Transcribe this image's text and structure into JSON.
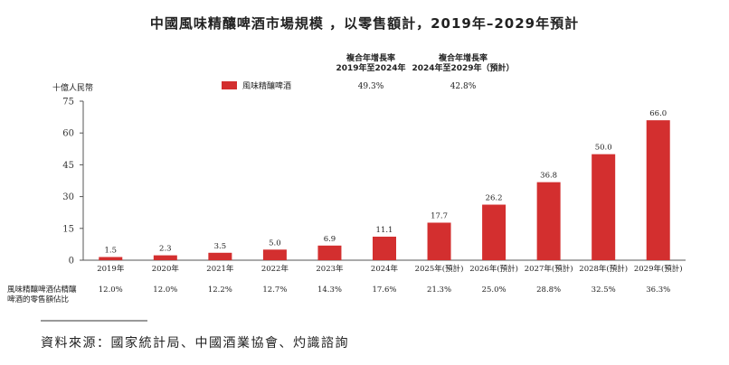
{
  "title": "中國風味精釀啤酒市場規模 ，以零售額計，2019年–2029年預計",
  "cagr": {
    "header_1_line1": "複合年增長率",
    "header_1_line2": "2019年至2024年",
    "header_2_line1": "複合年增長率",
    "header_2_line2": "2024年至2029年（預計）",
    "value_1": "49.3%",
    "value_2": "42.8%"
  },
  "footnote_label_line1": "風味精釀啤酒佔精釀",
  "footnote_label_line2": "啤酒的零售額佔比",
  "source": "資料來源：國家統計局、中國酒業協會、灼識諮詢",
  "chart_data": {
    "type": "bar",
    "ylabel": "十億人民幣",
    "ylim": [
      0,
      75
    ],
    "yticks": [
      "0",
      "15",
      "30",
      "45",
      "60",
      "75"
    ],
    "grid": false,
    "legend": "top-left",
    "categories": [
      "2019年",
      "2020年",
      "2021年",
      "2022年",
      "2023年",
      "2024年",
      "2025年(預計)",
      "2026年(預計)",
      "2027年(預計)",
      "2028年(預計)",
      "2029年(預計)"
    ],
    "series": [
      {
        "name": "風味精釀啤酒",
        "color": "#d32f2f",
        "values": [
          1.5,
          2.3,
          3.5,
          5.0,
          6.9,
          11.1,
          17.7,
          26.2,
          36.8,
          50.0,
          66.0
        ],
        "labels": [
          "1.5",
          "2.3",
          "3.5",
          "5.0",
          "6.9",
          "11.1",
          "17.7",
          "26.2",
          "36.8",
          "50.0",
          "66.0"
        ]
      }
    ],
    "share_of_craft_beer": [
      "12.0%",
      "12.0%",
      "12.2%",
      "12.7%",
      "14.3%",
      "17.6%",
      "21.3%",
      "25.0%",
      "28.8%",
      "32.5%",
      "36.3%"
    ]
  }
}
